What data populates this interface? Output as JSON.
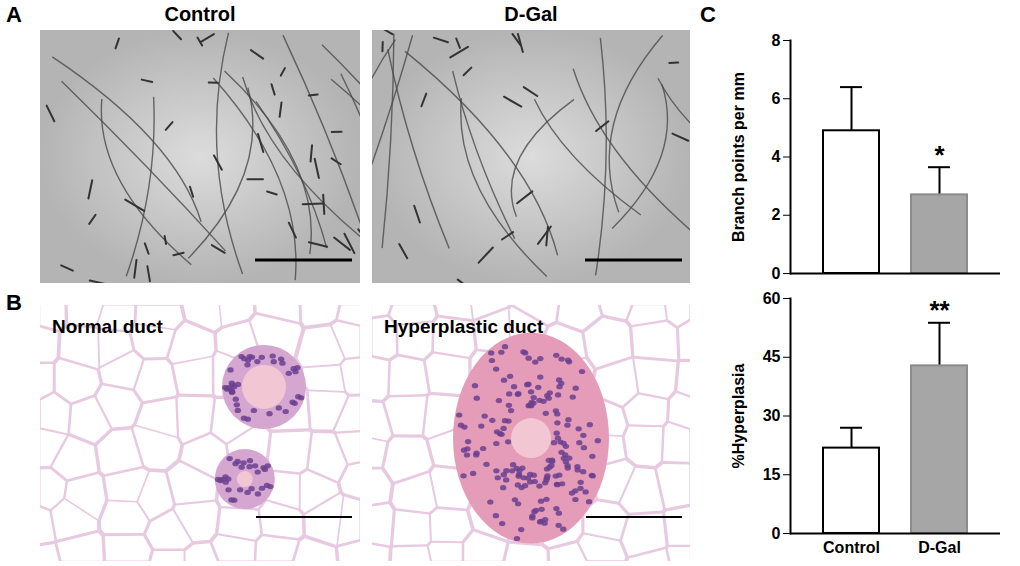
{
  "panels": {
    "A": {
      "letter": "A",
      "images": [
        "Control",
        "D-Gal"
      ]
    },
    "B": {
      "letter": "B",
      "images": [
        "Normal duct",
        "Hyperplastic duct"
      ]
    },
    "C": {
      "letter": "C"
    }
  },
  "chart_data": [
    {
      "type": "bar",
      "categories": [
        "Control",
        "D-Gal"
      ],
      "values": [
        4.9,
        2.7
      ],
      "errors": [
        1.5,
        0.95
      ],
      "colors": [
        "#ffffff",
        "#a6a6a6"
      ],
      "y_label": "Branch points per mm",
      "ylim": [
        0,
        8
      ],
      "yticks": [
        0,
        2,
        4,
        6,
        8
      ],
      "grid": false,
      "tick_labels": "y",
      "annotations": [
        {
          "category": "D-Gal",
          "text": "*"
        }
      ]
    },
    {
      "type": "bar",
      "categories": [
        "Control",
        "D-Gal"
      ],
      "values": [
        21.8,
        42.8
      ],
      "errors": [
        5.2,
        11
      ],
      "colors": [
        "#ffffff",
        "#a6a6a6"
      ],
      "y_label": "%Hyperplasia",
      "ylim": [
        0,
        60
      ],
      "yticks": [
        0,
        15,
        30,
        45,
        60
      ],
      "grid": false,
      "tick_labels": true,
      "annotations": [
        {
          "category": "D-Gal",
          "text": "**"
        }
      ]
    }
  ]
}
